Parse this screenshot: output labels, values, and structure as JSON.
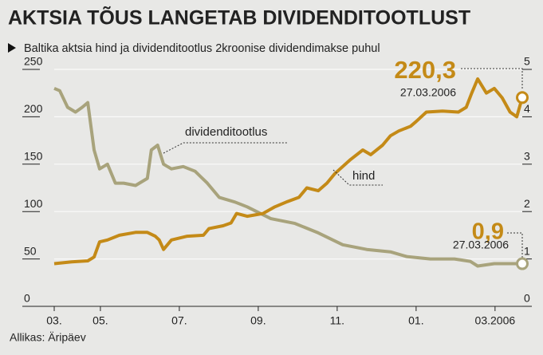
{
  "chart_data": {
    "type": "line",
    "title": "AKTSIA TÕUS LANGETAB DIVIDENDITOOTLUST",
    "subtitle": "Baltika aktsia hind ja dividenditootlus 2kroonise dividendimakse puhul",
    "source": "Allikas: Äripäev",
    "xlim": [
      0.83,
      12.69
    ],
    "xticks": [
      {
        "value": 0.83,
        "label": "03."
      },
      {
        "value": 2,
        "label": "05."
      },
      {
        "value": 4,
        "label": "07."
      },
      {
        "value": 6,
        "label": "09."
      },
      {
        "value": 8,
        "label": "11."
      },
      {
        "value": 10,
        "label": "01."
      },
      {
        "value": 12,
        "label": "03.2006"
      }
    ],
    "ylim": [
      0,
      250
    ],
    "yticks": [
      0,
      50,
      100,
      150,
      200,
      250
    ],
    "y2lim": [
      0,
      5
    ],
    "y2ticks": [
      0,
      1,
      2,
      3,
      4,
      5
    ],
    "grid": true,
    "series": [
      {
        "name": "hind",
        "color": "#c48a17",
        "axis": "y",
        "x": [
          0.83,
          1.27,
          1.68,
          1.84,
          1.98,
          2.18,
          2.48,
          2.89,
          3.19,
          3.39,
          3.49,
          3.6,
          3.8,
          4.2,
          4.61,
          4.75,
          5.11,
          5.31,
          5.45,
          5.72,
          6.12,
          6.42,
          6.71,
          7.03,
          7.23,
          7.52,
          7.74,
          7.94,
          8.34,
          8.65,
          8.85,
          9.15,
          9.35,
          9.56,
          9.86,
          10.0,
          10.26,
          10.67,
          11.07,
          11.27,
          11.41,
          11.56,
          11.78,
          11.98,
          12.18,
          12.38,
          12.55,
          12.69
        ],
        "values": [
          45,
          47,
          48,
          52,
          68,
          70,
          75,
          78,
          78,
          74,
          70,
          60,
          70,
          74,
          75,
          82,
          85,
          88,
          98,
          95,
          98,
          105,
          110,
          115,
          125,
          122,
          130,
          140,
          155,
          165,
          160,
          170,
          180,
          185,
          190,
          195,
          205,
          206,
          205,
          210,
          225,
          240,
          225,
          230,
          220,
          205,
          200,
          220.3
        ],
        "end_label": "220,3",
        "end_date": "27.03.2006"
      },
      {
        "name": "dividenditootlus",
        "color": "#a8a37c",
        "axis": "y2",
        "x": [
          0.83,
          0.97,
          1.17,
          1.37,
          1.54,
          1.68,
          1.84,
          1.98,
          2.18,
          2.38,
          2.59,
          2.89,
          3.19,
          3.29,
          3.45,
          3.6,
          3.8,
          4.1,
          4.4,
          4.71,
          5.01,
          5.41,
          5.72,
          6.32,
          6.93,
          7.52,
          8.14,
          8.75,
          9.35,
          9.76,
          10.36,
          10.97,
          11.37,
          11.56,
          11.98,
          12.38,
          12.69
        ],
        "values": [
          4.6,
          4.55,
          4.2,
          4.1,
          4.2,
          4.3,
          3.3,
          2.9,
          3.0,
          2.6,
          2.6,
          2.55,
          2.7,
          3.3,
          3.4,
          3.0,
          2.9,
          2.95,
          2.85,
          2.6,
          2.3,
          2.2,
          2.1,
          1.85,
          1.75,
          1.55,
          1.3,
          1.2,
          1.15,
          1.05,
          1.0,
          1.0,
          0.95,
          0.85,
          0.9,
          0.9,
          0.9
        ],
        "end_label": "0,9",
        "end_date": "27.03.2006"
      }
    ]
  }
}
